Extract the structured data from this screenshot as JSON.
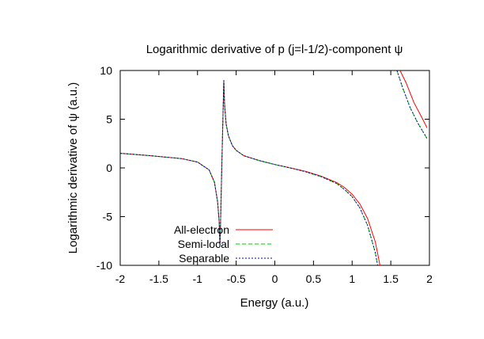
{
  "chart_data": {
    "type": "line",
    "title": "Logarithmic derivative of p (j=l-1/2)-component ψ",
    "xlabel": "Energy (a.u.)",
    "ylabel": "Logarithmic derivative of ψ (a.u.)",
    "xlim": [
      -2,
      2
    ],
    "ylim": [
      -10,
      10
    ],
    "x_ticks": [
      "-2",
      "-1.5",
      "-1",
      "-0.5",
      "0",
      "0.5",
      "1",
      "1.5",
      "2"
    ],
    "y_ticks": [
      "10",
      "5",
      "0",
      "-5",
      "-10"
    ],
    "grid": false,
    "legend_position": "bottom-left",
    "series": [
      {
        "name": "All-electron",
        "color": "#ff0000",
        "dash": "solid",
        "segments": [
          [
            [
              -2.0,
              1.5
            ],
            [
              -1.6,
              1.25
            ],
            [
              -1.2,
              0.95
            ],
            [
              -1.0,
              0.6
            ],
            [
              -0.85,
              -0.2
            ],
            [
              -0.78,
              -1.5
            ],
            [
              -0.74,
              -3.5
            ],
            [
              -0.72,
              -5.5
            ],
            [
              -0.71,
              -8.0
            ]
          ],
          [
            [
              -0.71,
              -8.0
            ],
            [
              -0.7,
              -5.0
            ],
            [
              -0.685,
              0.5
            ],
            [
              -0.67,
              5.5
            ],
            [
              -0.66,
              9.0
            ]
          ],
          [
            [
              -0.66,
              9.0
            ],
            [
              -0.65,
              6.5
            ],
            [
              -0.63,
              4.5
            ],
            [
              -0.6,
              3.3
            ],
            [
              -0.55,
              2.3
            ],
            [
              -0.5,
              1.8
            ],
            [
              -0.4,
              1.25
            ],
            [
              -0.2,
              0.75
            ],
            [
              0.0,
              0.35
            ],
            [
              0.2,
              0.0
            ],
            [
              0.4,
              -0.35
            ],
            [
              0.6,
              -0.85
            ],
            [
              0.8,
              -1.5
            ],
            [
              0.9,
              -2.0
            ],
            [
              1.0,
              -2.7
            ],
            [
              1.1,
              -3.7
            ],
            [
              1.2,
              -5.2
            ],
            [
              1.3,
              -7.6
            ],
            [
              1.36,
              -10.0
            ]
          ],
          [
            [
              1.62,
              10.0
            ],
            [
              1.7,
              8.7
            ],
            [
              1.8,
              6.7
            ],
            [
              1.9,
              5.2
            ],
            [
              1.97,
              4.1
            ]
          ]
        ]
      },
      {
        "name": "Semi-local",
        "color": "#00cc00",
        "dash": "dashed",
        "segments": [
          [
            [
              -2.0,
              1.5
            ],
            [
              -1.6,
              1.25
            ],
            [
              -1.2,
              0.95
            ],
            [
              -1.0,
              0.6
            ],
            [
              -0.85,
              -0.2
            ],
            [
              -0.78,
              -1.5
            ],
            [
              -0.74,
              -3.5
            ],
            [
              -0.72,
              -5.5
            ],
            [
              -0.71,
              -8.0
            ]
          ],
          [
            [
              -0.71,
              -8.0
            ],
            [
              -0.7,
              -5.0
            ],
            [
              -0.685,
              0.5
            ],
            [
              -0.67,
              5.5
            ],
            [
              -0.66,
              9.0
            ]
          ],
          [
            [
              -0.66,
              9.0
            ],
            [
              -0.65,
              6.5
            ],
            [
              -0.63,
              4.5
            ],
            [
              -0.6,
              3.3
            ],
            [
              -0.55,
              2.3
            ],
            [
              -0.5,
              1.8
            ],
            [
              -0.4,
              1.25
            ],
            [
              -0.2,
              0.75
            ],
            [
              0.0,
              0.35
            ],
            [
              0.2,
              0.0
            ],
            [
              0.4,
              -0.4
            ],
            [
              0.6,
              -0.9
            ],
            [
              0.8,
              -1.6
            ],
            [
              0.9,
              -2.2
            ],
            [
              1.0,
              -2.95
            ],
            [
              1.1,
              -4.1
            ],
            [
              1.2,
              -5.9
            ],
            [
              1.3,
              -8.7
            ],
            [
              1.33,
              -10.0
            ]
          ],
          [
            [
              1.58,
              10.0
            ],
            [
              1.65,
              8.3
            ],
            [
              1.75,
              6.2
            ],
            [
              1.85,
              4.6
            ],
            [
              1.97,
              3.0
            ]
          ]
        ]
      },
      {
        "name": "Separable",
        "color": "#0000aa",
        "dash": "dotted",
        "segments": [
          [
            [
              -2.0,
              1.5
            ],
            [
              -1.6,
              1.25
            ],
            [
              -1.2,
              0.95
            ],
            [
              -1.0,
              0.6
            ],
            [
              -0.85,
              -0.2
            ],
            [
              -0.78,
              -1.5
            ],
            [
              -0.74,
              -3.5
            ],
            [
              -0.72,
              -5.5
            ],
            [
              -0.71,
              -8.0
            ]
          ],
          [
            [
              -0.71,
              -8.0
            ],
            [
              -0.7,
              -5.0
            ],
            [
              -0.685,
              0.5
            ],
            [
              -0.67,
              5.5
            ],
            [
              -0.66,
              9.0
            ]
          ],
          [
            [
              -0.66,
              9.0
            ],
            [
              -0.65,
              6.5
            ],
            [
              -0.63,
              4.5
            ],
            [
              -0.6,
              3.3
            ],
            [
              -0.55,
              2.3
            ],
            [
              -0.5,
              1.8
            ],
            [
              -0.4,
              1.25
            ],
            [
              -0.2,
              0.75
            ],
            [
              0.0,
              0.35
            ],
            [
              0.2,
              0.0
            ],
            [
              0.4,
              -0.4
            ],
            [
              0.6,
              -0.9
            ],
            [
              0.8,
              -1.6
            ],
            [
              0.9,
              -2.2
            ],
            [
              1.0,
              -2.95
            ],
            [
              1.1,
              -4.1
            ],
            [
              1.2,
              -5.9
            ],
            [
              1.3,
              -8.7
            ],
            [
              1.33,
              -10.0
            ]
          ],
          [
            [
              1.58,
              10.0
            ],
            [
              1.65,
              8.3
            ],
            [
              1.75,
              6.2
            ],
            [
              1.85,
              4.6
            ],
            [
              1.97,
              3.0
            ]
          ]
        ]
      }
    ]
  }
}
